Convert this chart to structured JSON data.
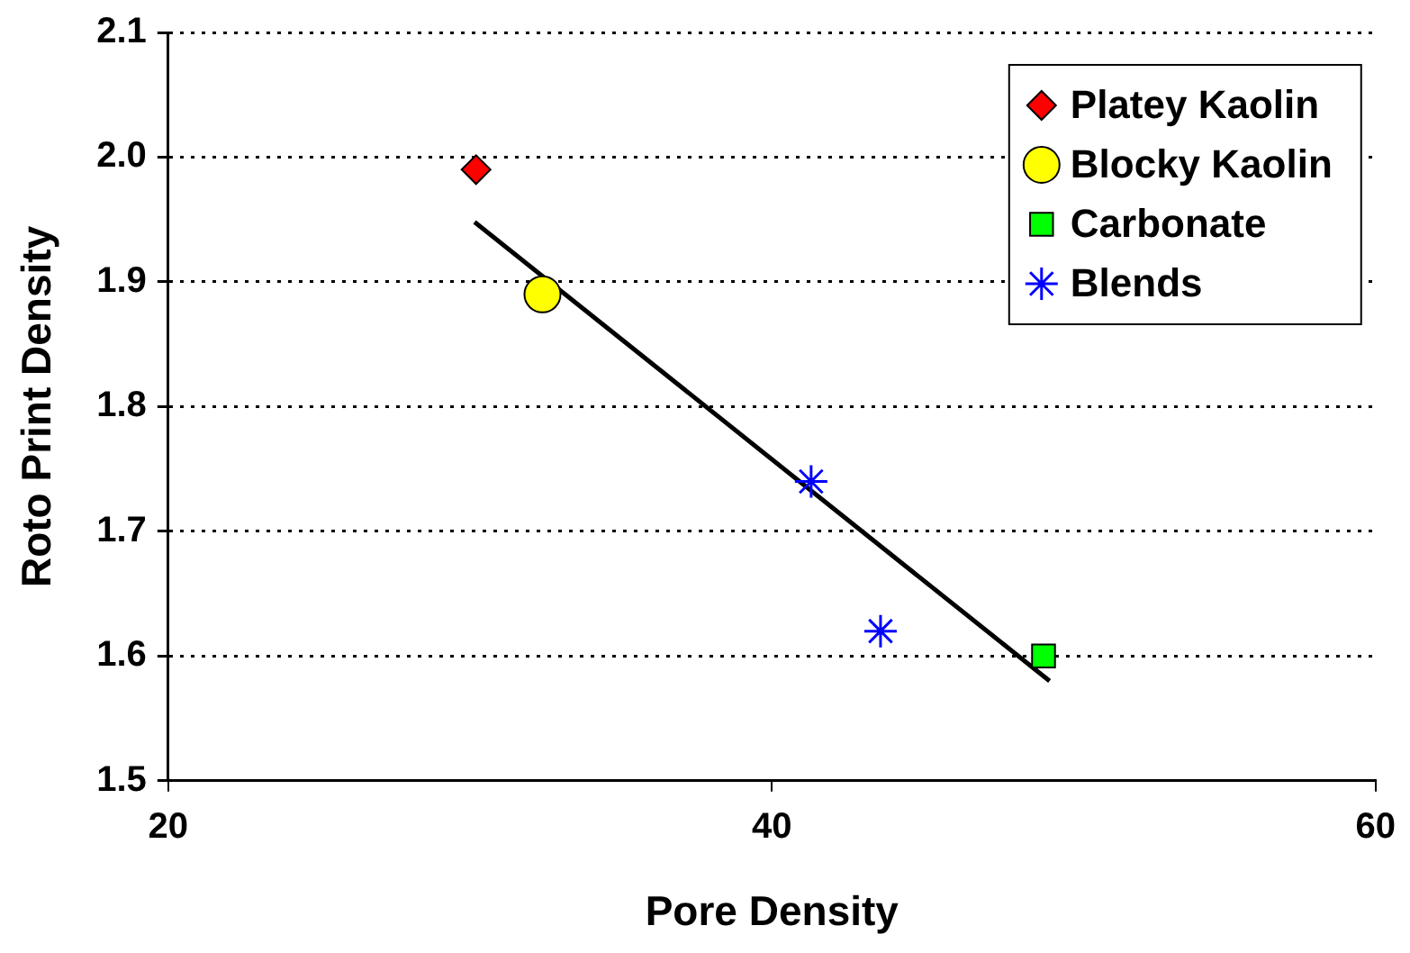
{
  "chart_data": {
    "type": "scatter",
    "xlabel": "Pore Density",
    "ylabel": "Roto Print Density",
    "xlim": [
      20,
      60
    ],
    "xticks": [
      20,
      40,
      60
    ],
    "ylim": [
      1.5,
      2.1
    ],
    "yticks": [
      1.5,
      1.6,
      1.7,
      1.8,
      1.9,
      {
        "value": 2.0,
        "label": "2.0"
      },
      2.1
    ],
    "grid": "y",
    "legend": "top right",
    "series": [
      {
        "name": "Platey Kaolin",
        "color": "#ff0000",
        "marker": "diamond",
        "x": [
          30.2
        ],
        "values": [
          1.99
        ]
      },
      {
        "name": "Blocky Kaolin",
        "color": "#ffff00",
        "marker": "circle",
        "x": [
          32.4
        ],
        "values": [
          1.89
        ]
      },
      {
        "name": "Carbonate",
        "color": "#00ff00",
        "marker": "square",
        "x": [
          49.0
        ],
        "values": [
          1.6
        ]
      },
      {
        "name": "Blends",
        "color": "#0000ff",
        "marker": "cross",
        "x": [
          41.3,
          43.6
        ],
        "values": [
          1.74,
          1.62
        ]
      },
      {
        "type": "line",
        "color": "#000000",
        "marker": "none",
        "line_style": "solid",
        "x": [
          30.15,
          49.2
        ],
        "values": [
          1.948,
          1.58
        ]
      }
    ]
  }
}
